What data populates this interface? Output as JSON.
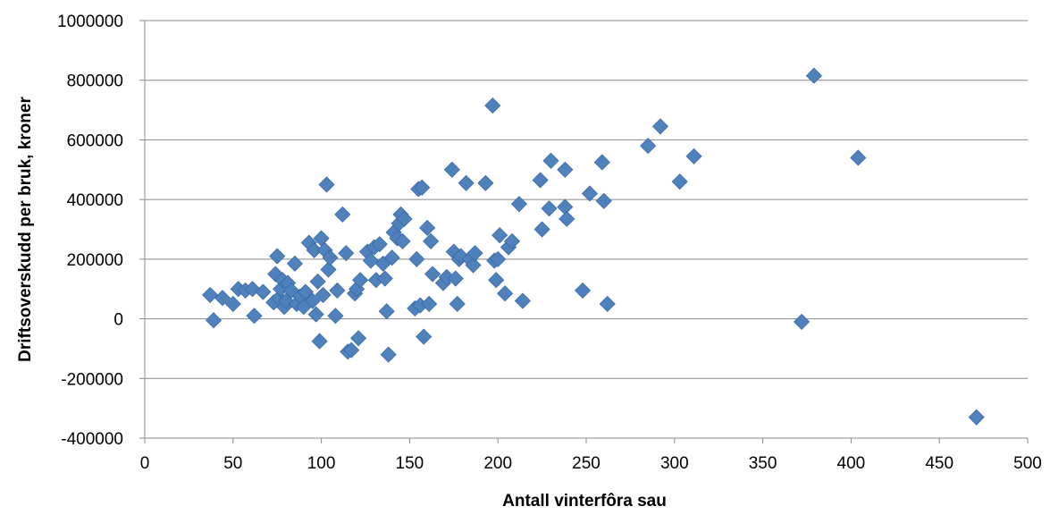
{
  "chart_data": {
    "type": "scatter",
    "xlabel": "Antall vinterfôra sau",
    "ylabel": "Driftsoverskudd per bruk, kroner",
    "xlim": [
      0,
      500
    ],
    "ylim": [
      -400000,
      1000000
    ],
    "x_ticks": [
      0,
      50,
      100,
      150,
      200,
      250,
      300,
      350,
      400,
      450,
      500
    ],
    "y_ticks": [
      -400000,
      -200000,
      0,
      200000,
      400000,
      600000,
      800000,
      1000000
    ],
    "grid": "horizontal",
    "legend": "none",
    "marker": "diamond",
    "colors": {
      "marker": "#4F81BD",
      "marker_edge": "#3A6AA4",
      "grid": "#888888",
      "axis": "#888888"
    },
    "points": [
      [
        37,
        80000
      ],
      [
        39,
        -5000
      ],
      [
        44,
        70000
      ],
      [
        50,
        50000
      ],
      [
        53,
        100000
      ],
      [
        57,
        95000
      ],
      [
        61,
        100000
      ],
      [
        62,
        10000
      ],
      [
        67,
        90000
      ],
      [
        73,
        55000
      ],
      [
        74,
        150000
      ],
      [
        75,
        210000
      ],
      [
        76,
        70000
      ],
      [
        77,
        100000
      ],
      [
        78,
        130000
      ],
      [
        79,
        40000
      ],
      [
        80,
        60000
      ],
      [
        81,
        120000
      ],
      [
        83,
        95000
      ],
      [
        85,
        185000
      ],
      [
        86,
        50000
      ],
      [
        88,
        75000
      ],
      [
        90,
        40000
      ],
      [
        91,
        90000
      ],
      [
        93,
        255000
      ],
      [
        95,
        60000
      ],
      [
        96,
        230000
      ],
      [
        97,
        15000
      ],
      [
        98,
        125000
      ],
      [
        99,
        -75000
      ],
      [
        100,
        270000
      ],
      [
        101,
        80000
      ],
      [
        102,
        230000
      ],
      [
        103,
        450000
      ],
      [
        104,
        165000
      ],
      [
        105,
        205000
      ],
      [
        108,
        10000
      ],
      [
        109,
        95000
      ],
      [
        112,
        350000
      ],
      [
        114,
        220000
      ],
      [
        115,
        -110000
      ],
      [
        117,
        -105000
      ],
      [
        119,
        85000
      ],
      [
        120,
        100000
      ],
      [
        121,
        -65000
      ],
      [
        122,
        130000
      ],
      [
        126,
        225000
      ],
      [
        128,
        195000
      ],
      [
        130,
        240000
      ],
      [
        131,
        130000
      ],
      [
        133,
        250000
      ],
      [
        135,
        185000
      ],
      [
        136,
        135000
      ],
      [
        137,
        25000
      ],
      [
        138,
        -120000
      ],
      [
        140,
        205000
      ],
      [
        141,
        290000
      ],
      [
        143,
        270000
      ],
      [
        144,
        320000
      ],
      [
        145,
        350000
      ],
      [
        146,
        260000
      ],
      [
        147,
        335000
      ],
      [
        153,
        35000
      ],
      [
        154,
        200000
      ],
      [
        155,
        435000
      ],
      [
        156,
        45000
      ],
      [
        157,
        440000
      ],
      [
        158,
        -60000
      ],
      [
        160,
        305000
      ],
      [
        161,
        50000
      ],
      [
        162,
        260000
      ],
      [
        163,
        150000
      ],
      [
        169,
        120000
      ],
      [
        171,
        140000
      ],
      [
        174,
        500000
      ],
      [
        175,
        225000
      ],
      [
        176,
        135000
      ],
      [
        177,
        50000
      ],
      [
        178,
        200000
      ],
      [
        179,
        210000
      ],
      [
        182,
        455000
      ],
      [
        184,
        200000
      ],
      [
        186,
        180000
      ],
      [
        187,
        220000
      ],
      [
        193,
        455000
      ],
      [
        197,
        715000
      ],
      [
        198,
        195000
      ],
      [
        199,
        130000
      ],
      [
        200,
        200000
      ],
      [
        201,
        280000
      ],
      [
        204,
        85000
      ],
      [
        206,
        240000
      ],
      [
        208,
        260000
      ],
      [
        212,
        385000
      ],
      [
        214,
        60000
      ],
      [
        224,
        465000
      ],
      [
        225,
        300000
      ],
      [
        229,
        370000
      ],
      [
        230,
        530000
      ],
      [
        238,
        500000
      ],
      [
        238,
        375000
      ],
      [
        239,
        335000
      ],
      [
        248,
        95000
      ],
      [
        252,
        420000
      ],
      [
        259,
        525000
      ],
      [
        260,
        395000
      ],
      [
        262,
        50000
      ],
      [
        285,
        580000
      ],
      [
        292,
        645000
      ],
      [
        303,
        460000
      ],
      [
        311,
        545000
      ],
      [
        372,
        -10000
      ],
      [
        379,
        815000
      ],
      [
        404,
        540000
      ],
      [
        471,
        -330000
      ]
    ]
  }
}
